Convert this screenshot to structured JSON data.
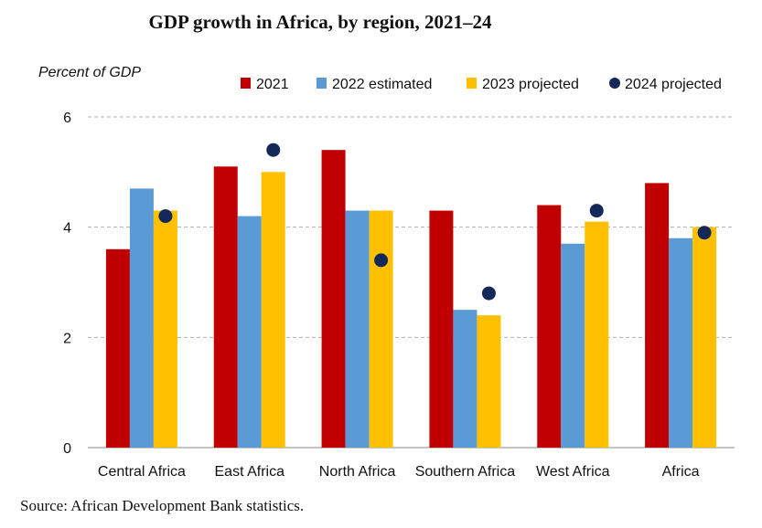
{
  "chart_data": {
    "type": "bar",
    "title": "GDP growth in Africa, by region, 2021–24",
    "ylabel": "Percent of GDP",
    "xlabel": "",
    "ylim": [
      0,
      6
    ],
    "yticks": [
      0,
      2,
      4,
      6
    ],
    "grid": true,
    "legend_position": "top-right",
    "categories": [
      "Central Africa",
      "East Africa",
      "North Africa",
      "Southern Africa",
      "West Africa",
      "Africa"
    ],
    "series": [
      {
        "name": "2021",
        "kind": "bar",
        "color": "#C00000",
        "values": [
          3.6,
          5.1,
          5.4,
          4.3,
          4.4,
          4.8
        ]
      },
      {
        "name": "2022 estimated",
        "kind": "bar",
        "color": "#5B9BD5",
        "values": [
          4.7,
          4.2,
          4.3,
          2.5,
          3.7,
          3.8
        ]
      },
      {
        "name": "2023 projected",
        "kind": "bar",
        "color": "#FFC000",
        "values": [
          4.3,
          5.0,
          4.3,
          2.4,
          4.1,
          4.0
        ]
      },
      {
        "name": "2024 projected",
        "kind": "dot",
        "color": "#14285A",
        "values": [
          4.2,
          5.4,
          3.4,
          2.8,
          4.3,
          3.9
        ]
      }
    ],
    "source": "Source: African Development Bank statistics."
  }
}
